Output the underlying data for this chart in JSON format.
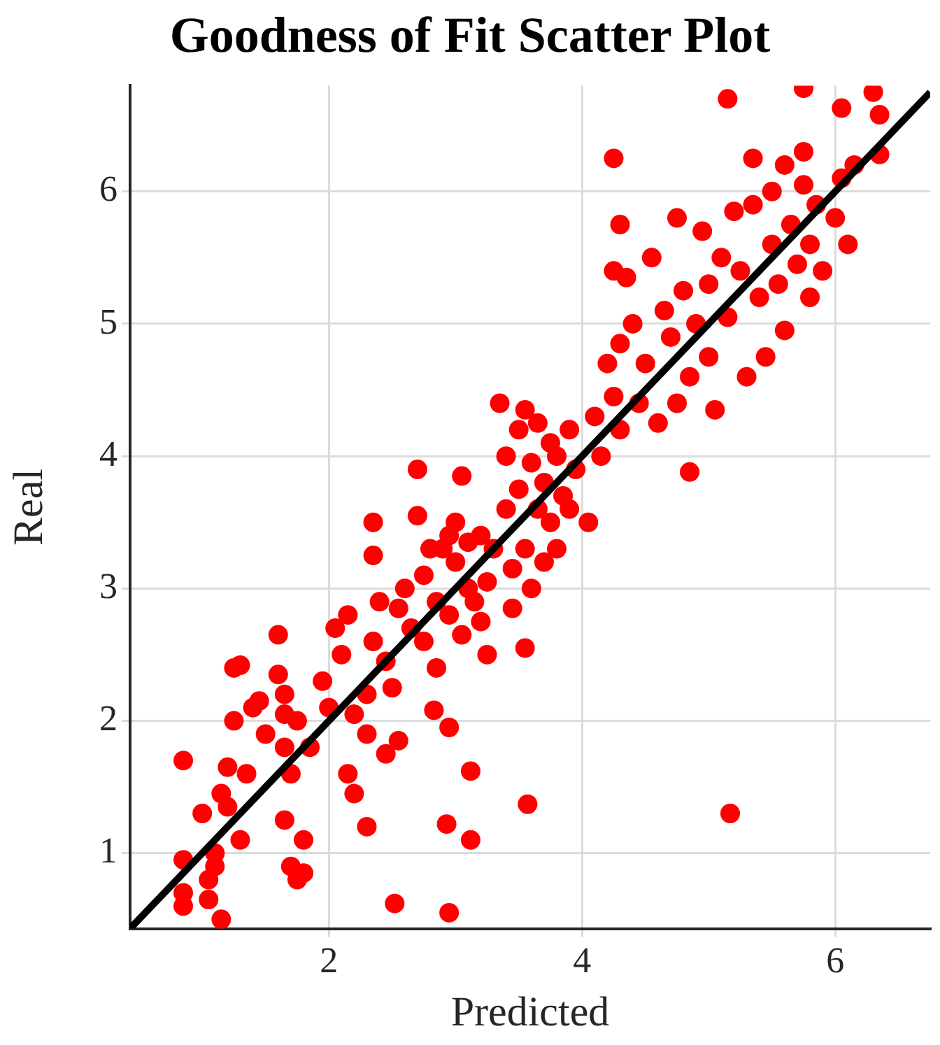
{
  "chart_data": {
    "type": "scatter",
    "title": "Goodness of Fit Scatter Plot",
    "xlabel": "Predicted",
    "ylabel": "Real",
    "xlim": [
      0.43,
      6.75
    ],
    "ylim": [
      0.43,
      6.8
    ],
    "xticks": [
      2,
      4,
      6
    ],
    "yticks": [
      1,
      2,
      3,
      4,
      5,
      6
    ],
    "grid": true,
    "legend": false,
    "series": [
      {
        "color": "#ff0000",
        "marker": "circle",
        "x": [
          5.17,
          3.57,
          2.95,
          2.52,
          3.12,
          2.93,
          3.12,
          2.95,
          2.83,
          4.85,
          4.25,
          5.15,
          5.75,
          6.3,
          6.35,
          6.05,
          6.35,
          4.3,
          0.85,
          0.85,
          0.85,
          0.85,
          1.05,
          1.05,
          1.15,
          1.1,
          1.15,
          1.2,
          1.25,
          1.25,
          1.3,
          1.35,
          1.4,
          1.45,
          1.2,
          1.3,
          1.5,
          1.6,
          1.6,
          1.65,
          1.65,
          1.65,
          1.7,
          1.75,
          1.8,
          1.8,
          1.7,
          1.75,
          1.85,
          1.65,
          1.1,
          1.0,
          1.95,
          2.0,
          2.05,
          2.1,
          2.15,
          2.15,
          2.2,
          2.2,
          2.3,
          2.3,
          2.3,
          2.35,
          2.35,
          2.35,
          2.4,
          2.45,
          2.45,
          2.55,
          2.5,
          2.55,
          2.6,
          2.65,
          2.7,
          2.7,
          2.75,
          2.75,
          2.8,
          2.85,
          2.85,
          2.9,
          2.95,
          2.95,
          3.0,
          3.0,
          3.05,
          3.05,
          3.1,
          3.1,
          3.15,
          3.2,
          3.2,
          3.25,
          3.25,
          3.3,
          3.35,
          3.4,
          3.4,
          3.45,
          3.45,
          3.5,
          3.5,
          3.55,
          3.55,
          3.55,
          3.6,
          3.6,
          3.65,
          3.65,
          3.7,
          3.7,
          3.75,
          3.75,
          3.8,
          3.8,
          3.85,
          3.9,
          3.9,
          3.95,
          4.05,
          4.1,
          4.15,
          4.2,
          4.25,
          4.25,
          4.3,
          4.35,
          4.3,
          4.4,
          4.45,
          4.5,
          4.55,
          4.6,
          4.65,
          4.7,
          4.75,
          4.75,
          4.8,
          4.85,
          4.9,
          4.95,
          5.0,
          5.0,
          5.05,
          5.1,
          5.15,
          5.2,
          5.25,
          5.3,
          5.35,
          5.4,
          5.45,
          5.5,
          5.5,
          5.55,
          5.6,
          5.6,
          5.65,
          5.7,
          5.75,
          5.8,
          5.8,
          5.85,
          5.9,
          6.0,
          6.05,
          6.1,
          6.15,
          5.35,
          5.75
        ],
        "values": [
          1.3,
          1.37,
          0.55,
          0.62,
          1.1,
          1.22,
          1.62,
          1.95,
          2.08,
          3.88,
          6.25,
          6.7,
          6.78,
          6.75,
          6.58,
          6.63,
          6.28,
          5.75,
          1.7,
          0.95,
          0.7,
          0.6,
          0.8,
          0.65,
          0.5,
          1.0,
          1.45,
          1.35,
          2.0,
          2.4,
          2.42,
          1.6,
          2.1,
          2.15,
          1.65,
          1.1,
          1.9,
          2.65,
          2.35,
          2.2,
          1.8,
          1.25,
          0.9,
          0.8,
          0.85,
          1.1,
          1.6,
          2.0,
          1.8,
          2.05,
          0.9,
          1.3,
          2.3,
          2.1,
          2.7,
          2.5,
          2.8,
          1.6,
          2.05,
          1.45,
          1.2,
          1.9,
          2.2,
          2.6,
          3.25,
          3.5,
          2.9,
          2.45,
          1.75,
          1.85,
          2.25,
          2.85,
          3.0,
          2.7,
          3.55,
          3.9,
          3.1,
          2.6,
          3.3,
          2.9,
          2.4,
          3.3,
          3.4,
          2.8,
          3.2,
          3.5,
          3.85,
          2.65,
          3.0,
          3.35,
          2.9,
          3.4,
          2.75,
          3.05,
          2.5,
          3.3,
          4.4,
          3.6,
          4.0,
          3.15,
          2.85,
          3.75,
          4.2,
          4.35,
          3.3,
          2.55,
          3.95,
          3.0,
          4.25,
          3.6,
          3.8,
          3.2,
          4.1,
          3.5,
          4.0,
          3.3,
          3.7,
          4.2,
          3.6,
          3.9,
          3.5,
          4.3,
          4.0,
          4.7,
          5.4,
          4.45,
          4.85,
          5.35,
          4.2,
          5.0,
          4.4,
          4.7,
          5.5,
          4.25,
          5.1,
          4.9,
          4.4,
          5.8,
          5.25,
          4.6,
          5.0,
          5.7,
          4.75,
          5.3,
          4.35,
          5.5,
          5.05,
          5.85,
          5.4,
          4.6,
          5.9,
          5.2,
          4.75,
          5.6,
          6.0,
          5.3,
          6.2,
          4.95,
          5.75,
          5.45,
          6.05,
          5.2,
          5.6,
          5.9,
          5.4,
          5.8,
          6.1,
          5.6,
          6.2,
          6.25,
          6.3
        ]
      },
      {
        "type": "line",
        "marker": "none",
        "color": "#000000",
        "x": [
          0.43,
          6.75
        ],
        "values": [
          0.43,
          6.75
        ]
      }
    ]
  }
}
